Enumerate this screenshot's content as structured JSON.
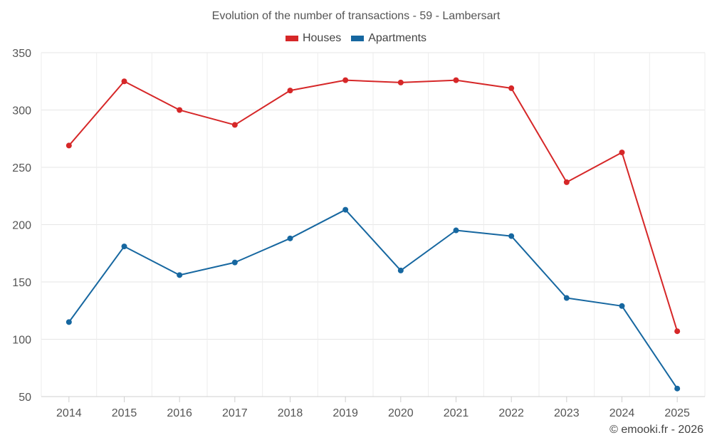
{
  "chart_data": {
    "type": "line",
    "title": "Evolution of the number of transactions - 59 - Lambersart",
    "categories": [
      "2014",
      "2015",
      "2016",
      "2017",
      "2018",
      "2019",
      "2020",
      "2021",
      "2022",
      "2023",
      "2024",
      "2025"
    ],
    "series": [
      {
        "name": "Houses",
        "color": "#d62728",
        "values": [
          269,
          325,
          300,
          287,
          317,
          326,
          324,
          326,
          319,
          237,
          263,
          107
        ]
      },
      {
        "name": "Apartments",
        "color": "#1667a0",
        "values": [
          115,
          181,
          156,
          167,
          188,
          213,
          160,
          195,
          190,
          136,
          129,
          57
        ]
      }
    ],
    "yticks": [
      50,
      100,
      150,
      200,
      250,
      300,
      350
    ],
    "ylim": [
      50,
      350
    ],
    "legend_position": "top-center",
    "grid": true
  },
  "credit": "© emooki.fr - 2026"
}
